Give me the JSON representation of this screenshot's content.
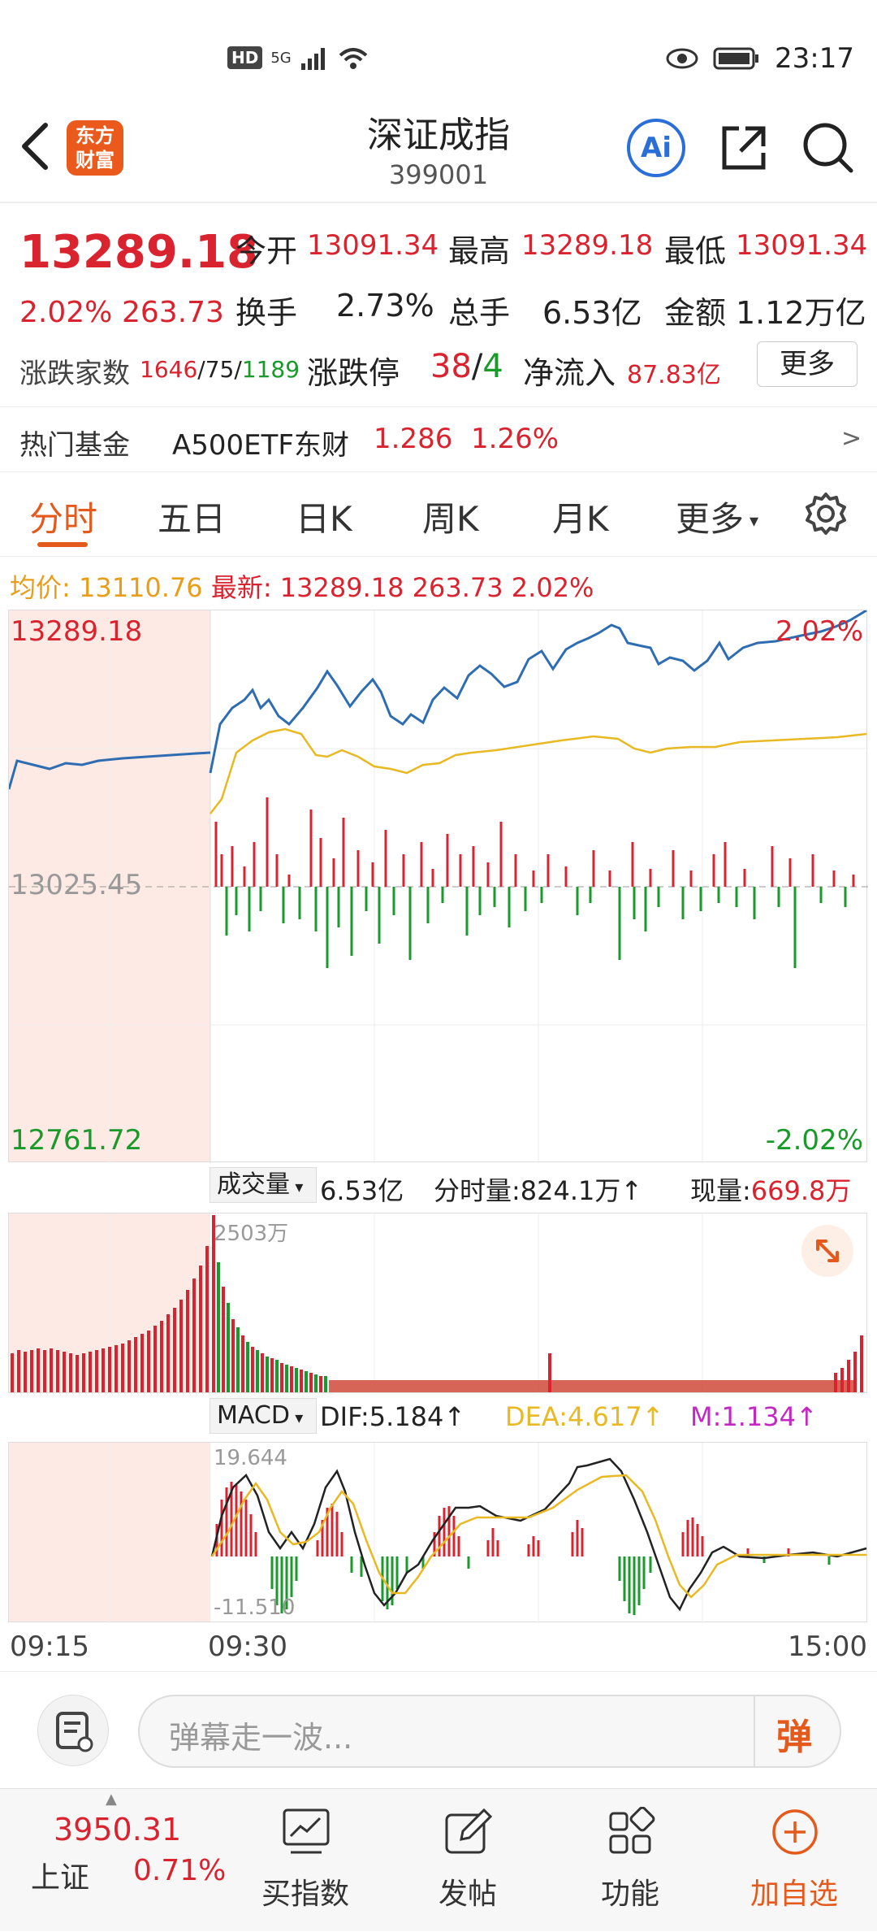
{
  "status_bar": {
    "network": "5G",
    "time": "23:17",
    "hd": "HD"
  },
  "header": {
    "logo_line1": "东方",
    "logo_line2": "财富",
    "title": "深证成指",
    "code": "399001",
    "ai_label": "Ai"
  },
  "quote": {
    "price": "13289.18",
    "change_pct": "2.02%",
    "change_val": "263.73",
    "open_label": "今开",
    "open": "13091.34",
    "high_label": "最高",
    "high": "13289.18",
    "low_label": "最低",
    "low": "13091.34",
    "turnover_label": "换手",
    "turnover": "2.73%",
    "volume_label": "总手",
    "volume": "6.53亿",
    "amount_label": "金额",
    "amount": "1.12万亿",
    "breadth_label": "涨跌家数",
    "breadth_up": "1646",
    "breadth_flat": "75",
    "breadth_down": "1189",
    "limit_label": "涨跌停",
    "limit_up": "38",
    "limit_down": "4",
    "netflow_label": "净流入",
    "netflow": "87.83亿",
    "more_button": "更多"
  },
  "hot_fund": {
    "label": "热门基金",
    "name": "A500ETF东财",
    "price": "1.286",
    "pct": "1.26%",
    "arrow": ">"
  },
  "tabs": [
    "分时",
    "五日",
    "日K",
    "周K",
    "月K",
    "更多"
  ],
  "intraday": {
    "avg_label": "均价:",
    "avg": "13110.76",
    "latest_label": "最新:",
    "latest": "13289.18",
    "latest_change": "263.73",
    "latest_pct": "2.02%",
    "top_price": "13289.18",
    "top_pct": "2.02%",
    "prev_close": "13025.45",
    "bottom_price": "12761.72",
    "bottom_pct": "-2.02%"
  },
  "volume_panel": {
    "selector": "成交量",
    "total": "6.53亿",
    "minute_label": "分时量:",
    "minute": "824.1万",
    "minute_arrow": "↑",
    "current_label": "现量:",
    "current": "669.8万",
    "max_label": "2503万"
  },
  "macd_panel": {
    "selector": "MACD",
    "dif": "DIF:5.184",
    "dea": "DEA:4.617",
    "m": "M:1.134",
    "arrow": "↑",
    "max": "19.644",
    "min": "-11.510"
  },
  "time_axis": [
    "09:15",
    "09:30",
    "15:00"
  ],
  "danmaku": {
    "placeholder": "弹幕走一波...",
    "button": "弹"
  },
  "bottom_nav": {
    "index_price": "3950.31",
    "index_name": "上证",
    "index_pct": "0.71%",
    "items": [
      "买指数",
      "发帖",
      "功能",
      "加自选"
    ]
  },
  "colors": {
    "up": "#d9232f",
    "down": "#1a9a2b",
    "price_line": "#2f6db3",
    "avg_line": "#e8b923",
    "accent": "#e35a1c",
    "macd_m": "#c428c4"
  }
}
